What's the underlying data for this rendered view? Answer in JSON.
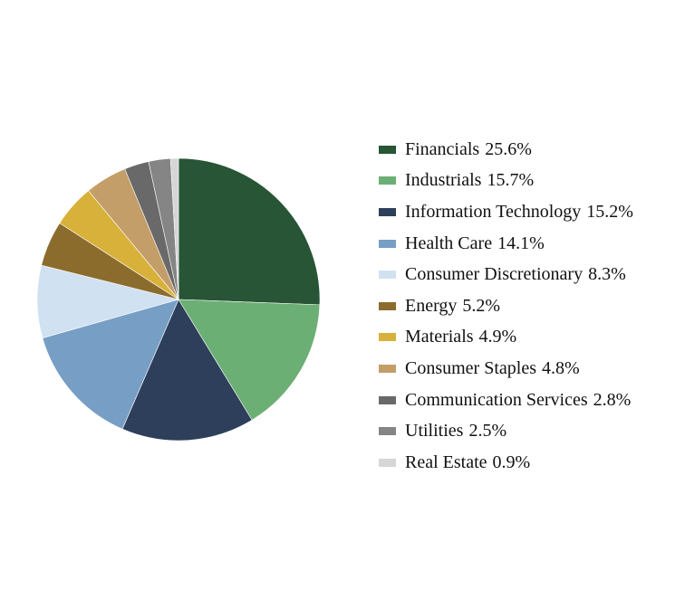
{
  "chart_data": {
    "type": "pie",
    "title": "",
    "start_angle_deg": 90,
    "direction": "clockwise",
    "legend_position": "right",
    "slices": [
      {
        "label": "Financials",
        "value": 25.6,
        "value_label": "25.6%",
        "color": "#275535"
      },
      {
        "label": "Industrials",
        "value": 15.7,
        "value_label": "15.7%",
        "color": "#6caf74"
      },
      {
        "label": "Information Technology",
        "value": 15.2,
        "value_label": "15.2%",
        "color": "#2d3f5a"
      },
      {
        "label": "Health Care",
        "value": 14.1,
        "value_label": "14.1%",
        "color": "#779ec4"
      },
      {
        "label": "Consumer Discretionary",
        "value": 8.3,
        "value_label": "8.3%",
        "color": "#d0e1f2"
      },
      {
        "label": "Energy",
        "value": 5.2,
        "value_label": "5.2%",
        "color": "#8c6c2d"
      },
      {
        "label": "Materials",
        "value": 4.9,
        "value_label": "4.9%",
        "color": "#d7b139"
      },
      {
        "label": "Consumer Staples",
        "value": 4.8,
        "value_label": "4.8%",
        "color": "#c49e68"
      },
      {
        "label": "Communication Services",
        "value": 2.8,
        "value_label": "2.8%",
        "color": "#696969"
      },
      {
        "label": "Utilities",
        "value": 2.5,
        "value_label": "2.5%",
        "color": "#858585"
      },
      {
        "label": "Real Estate",
        "value": 0.9,
        "value_label": "0.9%",
        "color": "#d6d6d6"
      }
    ]
  }
}
